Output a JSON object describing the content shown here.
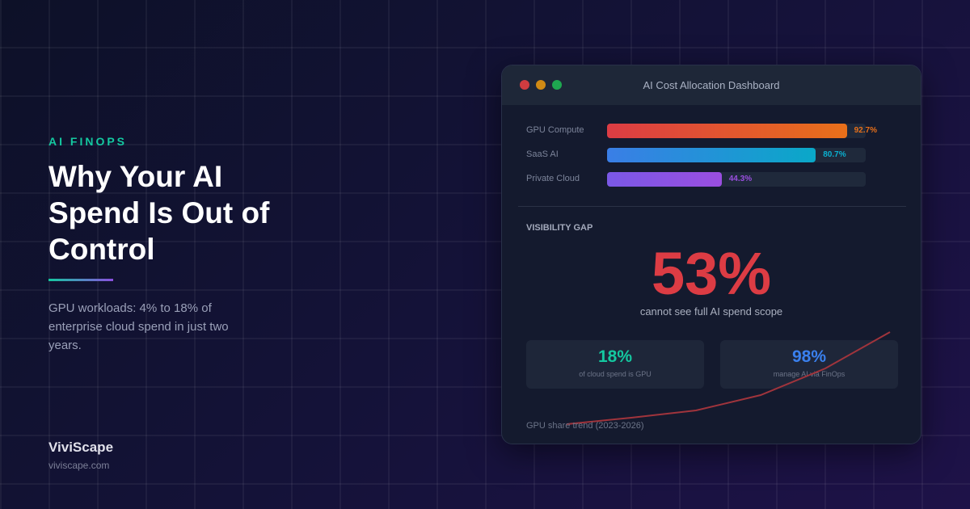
{
  "left": {
    "eyebrow": "AI FINOPS",
    "title": "Why Your AI Spend Is Out of Control",
    "description": "GPU workloads: 4% to 18% of enterprise cloud spend in just two years.",
    "brand": "ViviScape",
    "site": "viviscape.com"
  },
  "window": {
    "title": "AI Cost Allocation Dashboard",
    "controls": [
      "close",
      "minimize",
      "maximize"
    ]
  },
  "bars": [
    {
      "label": "GPU Compute",
      "value": 92.7,
      "display": "92.7%",
      "from": "#dc3c44",
      "to": "#e8701a",
      "text_color": "#e8701a"
    },
    {
      "label": "SaaS AI",
      "value": 80.7,
      "display": "80.7%",
      "from": "#3a7ee6",
      "to": "#0aa8c8",
      "text_color": "#0ab0d0"
    },
    {
      "label": "Private Cloud",
      "value": 44.3,
      "display": "44.3%",
      "from": "#7a58e6",
      "to": "#9a4ee0",
      "text_color": "#9a4ee0"
    }
  ],
  "visibility": {
    "heading": "VISIBILITY GAP",
    "value": "53%",
    "caption": "cannot see full AI spend scope",
    "color": "#dc3c44"
  },
  "stats": [
    {
      "value": "18%",
      "label": "of cloud spend is GPU",
      "color": "#14c8a0"
    },
    {
      "value": "98%",
      "label": "manage AI via FinOps",
      "color": "#3a80ee"
    }
  ],
  "trend": {
    "label": "GPU share trend (2023-2026)",
    "color": "#a0343c"
  }
}
